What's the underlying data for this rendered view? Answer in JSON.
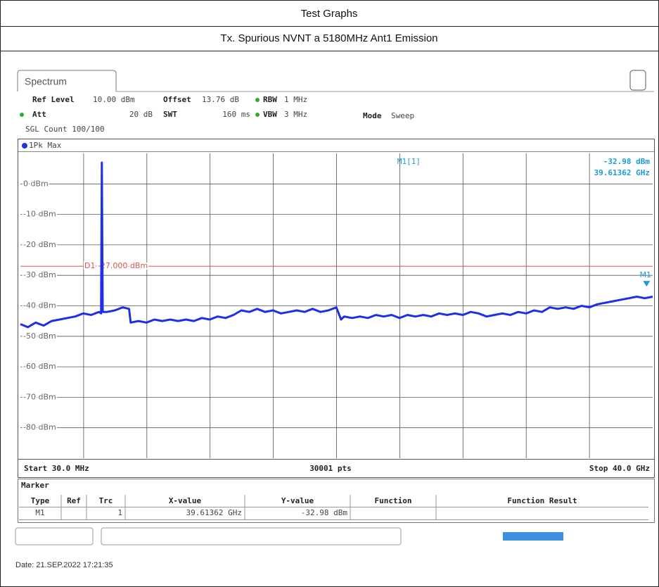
{
  "header": {
    "title": "Test Graphs",
    "subtitle": "Tx. Spurious NVNT a 5180MHz Ant1 Emission"
  },
  "tab": "Spectrum",
  "settings": {
    "ref_level_label": "Ref Level",
    "ref_level": "10.00 dBm",
    "offset_label": "Offset",
    "offset": "13.76 dB",
    "rbw_label": "RBW",
    "rbw": "1 MHz",
    "att_label": "Att",
    "att": "20 dB",
    "swt_label": "SWT",
    "swt": "160 ms",
    "vbw_label": "VBW",
    "vbw": "3 MHz",
    "mode_label": "Mode",
    "mode": "Sweep",
    "count": "SGL Count 100/100"
  },
  "chart_data": {
    "type": "line",
    "trace_label": "1Pk Max",
    "x_start_label": "Start 30.0 MHz",
    "points_label": "30001 pts",
    "x_stop_label": "Stop 40.0 GHz",
    "xlim": [
      0.03,
      40
    ],
    "ylim": [
      -90,
      10
    ],
    "yticks": [
      {
        "value": 0,
        "label": "0 dBm"
      },
      {
        "value": -10,
        "label": "-10 dBm"
      },
      {
        "value": -20,
        "label": "-20 dBm"
      },
      {
        "value": -30,
        "label": "-30 dBm"
      },
      {
        "value": -40,
        "label": "-40 dBm"
      },
      {
        "value": -50,
        "label": "-50 dBm"
      },
      {
        "value": -60,
        "label": "-60 dBm"
      },
      {
        "value": -70,
        "label": "-70 dBm"
      },
      {
        "value": -80,
        "label": "-80 dBm"
      }
    ],
    "grid": true,
    "series": [
      {
        "name": "1",
        "color": "#1f2fe8",
        "x": [
          0.03,
          0.5,
          1,
          1.5,
          2,
          2.5,
          3,
          3.5,
          4,
          4.5,
          5,
          5.13,
          5.18,
          5.23,
          5.5,
          6,
          6.5,
          6.9,
          7.0,
          7.5,
          8,
          8.5,
          9,
          9.5,
          10,
          10.5,
          11,
          11.5,
          12,
          12.5,
          13,
          13.5,
          14,
          14.5,
          15,
          15.5,
          16,
          16.5,
          17,
          17.5,
          18,
          18.5,
          19,
          19.5,
          20,
          20.3,
          20.5,
          21,
          21.5,
          22,
          22.5,
          23,
          23.5,
          24,
          24.5,
          25,
          25.5,
          26,
          26.5,
          27,
          27.5,
          28,
          28.5,
          29,
          29.5,
          30,
          30.5,
          31,
          31.5,
          32,
          32.5,
          33,
          33.5,
          34,
          34.5,
          35,
          35.5,
          36,
          36.5,
          37,
          37.5,
          38,
          38.5,
          39,
          39.5,
          40
        ],
        "values": [
          -46,
          -47,
          -45.5,
          -46.5,
          -45,
          -44.5,
          -44,
          -43.5,
          -42.5,
          -43,
          -42,
          -42.5,
          7,
          -42,
          -42,
          -41.5,
          -40.5,
          -41,
          -45.5,
          -45,
          -45.5,
          -44.5,
          -45,
          -44.5,
          -45,
          -44.5,
          -45,
          -44,
          -44.5,
          -43.5,
          -44,
          -43,
          -41.5,
          -42,
          -41,
          -42,
          -41.5,
          -42.5,
          -42,
          -41.5,
          -42,
          -41,
          -42,
          -41.5,
          -40.5,
          -44.5,
          -43.5,
          -44,
          -43.5,
          -44,
          -43,
          -43.5,
          -43,
          -44,
          -43,
          -43.5,
          -43,
          -43.5,
          -42.5,
          -43,
          -42.5,
          -43,
          -42,
          -42.5,
          -43.5,
          -43,
          -42.5,
          -43,
          -42,
          -42.5,
          -41.5,
          -42,
          -40.5,
          -41,
          -40.5,
          -41,
          -40,
          -40.5,
          -39.5,
          -39,
          -38.5,
          -38,
          -37.5,
          -37,
          -37.5,
          -37
        ]
      }
    ],
    "limit_line": {
      "value": -27,
      "label": "D1 -27.000 dBm",
      "color": "#d9534f"
    },
    "marker": {
      "name": "M1",
      "label": "M1[1]",
      "x": 39.61362,
      "y": -32.98,
      "y_label": "-32.98 dBm",
      "x_label": "39.61362 GHz",
      "color": "#1d9bd6"
    }
  },
  "marker_table": {
    "title": "Marker",
    "columns": [
      "Type",
      "Ref",
      "Trc",
      "X-value",
      "Y-value",
      "Function",
      "Function Result"
    ],
    "row": {
      "type": "M1",
      "trc": "1",
      "x": "39.61362 GHz",
      "y": "-32.98 dBm"
    }
  },
  "date": "Date: 21.SEP.2022  17:21:35"
}
